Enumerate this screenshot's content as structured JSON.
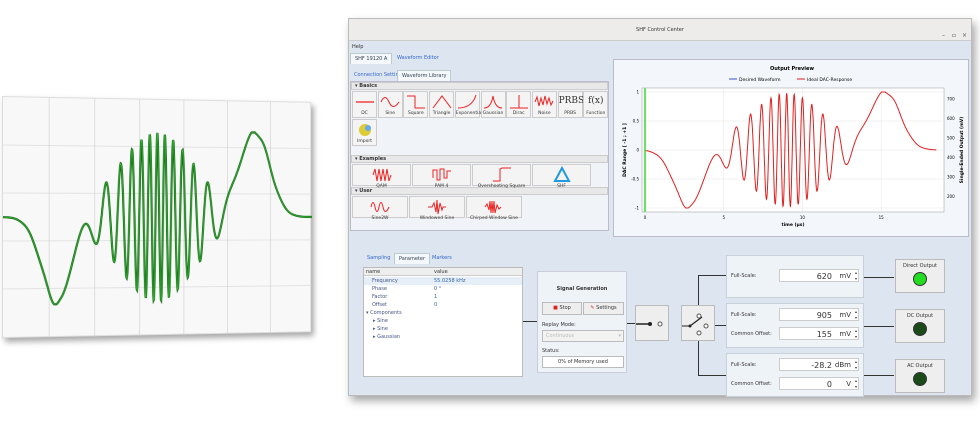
{
  "window": {
    "title": "SHF Control Center",
    "controls": [
      "–",
      "▫",
      "×"
    ]
  },
  "menu": {
    "help": "Help"
  },
  "main_tabs": [
    {
      "label": "SHF 19120 A",
      "active": true
    },
    {
      "label": "Waveform Editor",
      "active": false
    }
  ],
  "sub_tabs": [
    {
      "label": "Connection Settings",
      "active": false
    },
    {
      "label": "Waveform Library",
      "active": true
    }
  ],
  "library": {
    "basics_label": "Basics",
    "basics": [
      "DC",
      "Sine",
      "Square",
      "Triangle",
      "Exponential",
      "Gaussian",
      "Dirac",
      "Noise",
      "PRBS",
      "Function",
      "Import"
    ],
    "prbs_glyph": "PRBS",
    "function_glyph": "f(x)",
    "examples_label": "Examples",
    "examples": [
      "QAM",
      "PAM 4",
      "Overshooting Square",
      "SHF"
    ],
    "user_label": "User",
    "user": [
      "Sine2W",
      "Windowed Sine",
      "Chirped Window Sine"
    ]
  },
  "preview": {
    "title": "Output Preview",
    "legend": [
      {
        "name": "Desired Waveform",
        "color": "#3355cc"
      },
      {
        "name": "Ideal DAC-Response",
        "color": "#e02020"
      }
    ],
    "ylabel_left": "DAC Range [ -1 ; +1 ]",
    "ylabel_right": "Single-Ended Output (mV)",
    "xlabel": "time (µs)",
    "left_ticks": [
      "1",
      "0.5",
      "0",
      "-0.5",
      "-1"
    ],
    "right_ticks": [
      "700",
      "600",
      "500",
      "400",
      "300",
      "200"
    ],
    "x_ticks": [
      "0",
      "5",
      "10",
      "15"
    ],
    "marker_color": "#33dd33"
  },
  "bottom_tabs": [
    {
      "label": "Sampling"
    },
    {
      "label": "Parameter",
      "active": true
    },
    {
      "label": "Markers"
    }
  ],
  "params": {
    "headers": [
      "name",
      "value"
    ],
    "rows": [
      {
        "name": "Frequency",
        "value": "55.0258 kHz"
      },
      {
        "name": "Phase",
        "value": "0 °"
      },
      {
        "name": "Factor",
        "value": "1"
      },
      {
        "name": "Offset",
        "value": "0"
      }
    ],
    "components_label": "Components",
    "components": [
      "Sine",
      "Sine",
      "Gaussian"
    ]
  },
  "signal_generation": {
    "title": "Signal Generation",
    "stop": "Stop",
    "settings": "Settings",
    "replay_label": "Replay Mode:",
    "replay_value": "Continuous",
    "status_label": "Status:",
    "status_value": "0% of Memory used"
  },
  "outputs": {
    "direct": {
      "fs_label": "Full-Scale:",
      "fs_value": "620",
      "fs_unit": "mV",
      "button": "Direct Output",
      "led": "#22dd22"
    },
    "dc": {
      "fs_label": "Full-Scale:",
      "fs_value": "905",
      "fs_unit": "mV",
      "off_label": "Common Offset:",
      "off_value": "155",
      "off_unit": "mV",
      "button": "DC Output",
      "led": "#1a4a1a"
    },
    "ac": {
      "fs_label": "Full-Scale:",
      "fs_value": "-28.2",
      "fs_unit": "dBm",
      "off_label": "Common Offset:",
      "off_value": "0",
      "off_unit": "V",
      "button": "AC Output",
      "led": "#1a4a1a"
    }
  }
}
